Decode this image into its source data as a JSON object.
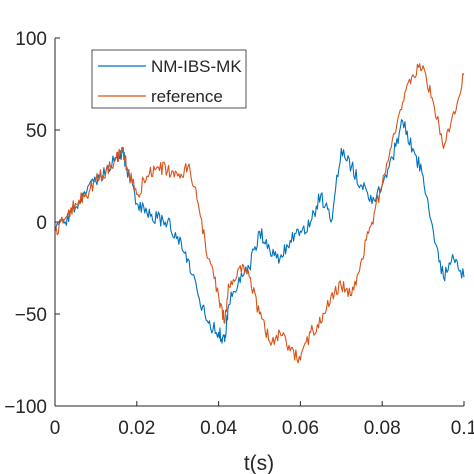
{
  "chart_data": {
    "type": "line",
    "title": "",
    "xlabel": "t(s)",
    "ylabel": "",
    "xlim": [
      0,
      0.1
    ],
    "ylim": [
      -100,
      100
    ],
    "x_ticks": [
      0,
      0.02,
      0.04,
      0.06,
      0.08,
      0.1
    ],
    "x_tick_labels": [
      "0",
      "0.02",
      "0.04",
      "0.06",
      "0.08",
      "0.1"
    ],
    "y_ticks": [
      100,
      50,
      0,
      -50,
      -100
    ],
    "y_tick_labels": [
      "100",
      "50",
      "0",
      "−50",
      "−100"
    ],
    "grid": false,
    "legend": {
      "placement": "top-left",
      "entries": [
        "NM-IBS-MK",
        "reference"
      ]
    },
    "x": [
      0,
      0.0025,
      0.005,
      0.0075,
      0.01,
      0.0125,
      0.015,
      0.0165,
      0.0175,
      0.02,
      0.0225,
      0.025,
      0.0275,
      0.03,
      0.0325,
      0.035,
      0.0375,
      0.04,
      0.0415,
      0.0425,
      0.045,
      0.0475,
      0.05,
      0.0525,
      0.055,
      0.0575,
      0.06,
      0.0625,
      0.065,
      0.0675,
      0.07,
      0.0725,
      0.075,
      0.0775,
      0.08,
      0.0825,
      0.085,
      0.0875,
      0.09,
      0.0925,
      0.095,
      0.0975,
      0.1
    ],
    "series": [
      {
        "name": "NM-IBS-MK",
        "color": "#0072BD",
        "values": [
          -5,
          0,
          8,
          15,
          22,
          28,
          35,
          38,
          30,
          10,
          5,
          2,
          0,
          -8,
          -20,
          -40,
          -55,
          -60,
          -65,
          -45,
          -30,
          -25,
          -5,
          -15,
          -20,
          -10,
          -5,
          0,
          15,
          0,
          40,
          30,
          20,
          10,
          20,
          35,
          55,
          40,
          25,
          -5,
          -30,
          -20,
          -30
        ]
      },
      {
        "name": "reference",
        "color": "#D95319",
        "values": [
          -5,
          2,
          10,
          15,
          22,
          28,
          35,
          40,
          30,
          15,
          25,
          30,
          28,
          25,
          30,
          10,
          -20,
          -40,
          -55,
          -35,
          -25,
          -30,
          -50,
          -65,
          -60,
          -70,
          -75,
          -60,
          -55,
          -40,
          -35,
          -40,
          -20,
          0,
          20,
          45,
          65,
          80,
          85,
          65,
          40,
          60,
          80
        ]
      }
    ]
  }
}
